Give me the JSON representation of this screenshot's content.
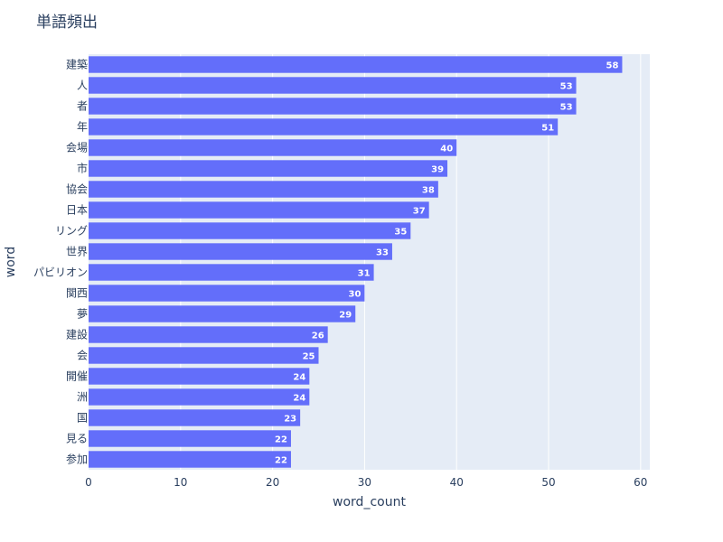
{
  "chart_data": {
    "type": "bar",
    "orientation": "horizontal",
    "title": "単語頻出",
    "xlabel": "word_count",
    "ylabel": "word",
    "xlim": [
      0,
      61
    ],
    "x_ticks": [
      0,
      10,
      20,
      30,
      40,
      50,
      60
    ],
    "grid": true,
    "bar_color": "#636efa",
    "plot_bg_color": "#e5ecf6",
    "categories": [
      "建築",
      "人",
      "者",
      "年",
      "会場",
      "市",
      "協会",
      "日本",
      "リング",
      "世界",
      "パビリオン",
      "関西",
      "夢",
      "建設",
      "会",
      "開催",
      "洲",
      "国",
      "見る",
      "参加"
    ],
    "values": [
      58,
      53,
      53,
      51,
      40,
      39,
      38,
      37,
      35,
      33,
      31,
      30,
      29,
      26,
      25,
      24,
      24,
      23,
      22,
      22
    ]
  }
}
